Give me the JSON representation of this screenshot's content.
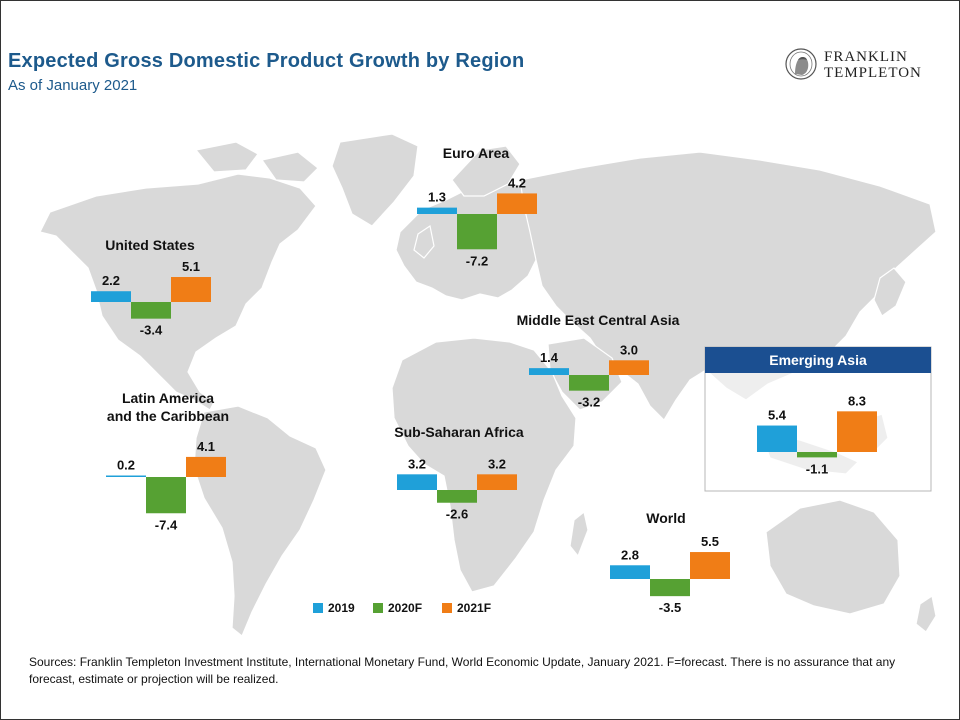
{
  "title": "Expected Gross Domestic Product Growth  by Region",
  "subtitle": "As of January 2021",
  "logo": {
    "line1": "FRANKLIN",
    "line2": "TEMPLETON"
  },
  "legend": [
    {
      "label": "2019",
      "color": "#1fa0d9"
    },
    {
      "label": "2020F",
      "color": "#56a133"
    },
    {
      "label": "2021F",
      "color": "#f07d16"
    }
  ],
  "colors": {
    "2019": "#1fa0d9",
    "2020F": "#56a133",
    "2021F": "#f07d16",
    "map": "#d9d9d9",
    "inset_header": "#1b4f91"
  },
  "source": "Sources: Franklin Templeton Investment Institute,  International  Monetary Fund, World Economic Update, January 2021. F=forecast. There is no assurance that  any forecast, estimate or projection will be realized.",
  "chart_data": {
    "type": "bar",
    "series_names": [
      "2019",
      "2020F",
      "2021F"
    ],
    "regions": [
      {
        "name": "United States",
        "values": [
          2.2,
          -3.4,
          5.1
        ]
      },
      {
        "name": "Euro Area",
        "values": [
          1.3,
          -7.2,
          4.2
        ]
      },
      {
        "name": "Middle East Central Asia",
        "values": [
          1.4,
          -3.2,
          3.0
        ]
      },
      {
        "name": "Emerging Asia",
        "values": [
          5.4,
          -1.1,
          8.3
        ]
      },
      {
        "name": "Latin America and the Caribbean",
        "values": [
          0.2,
          -7.4,
          4.1
        ]
      },
      {
        "name": "Sub-Saharan Africa",
        "values": [
          3.2,
          -2.6,
          3.2
        ]
      },
      {
        "name": "World",
        "values": [
          2.8,
          -3.5,
          5.5
        ]
      }
    ]
  }
}
